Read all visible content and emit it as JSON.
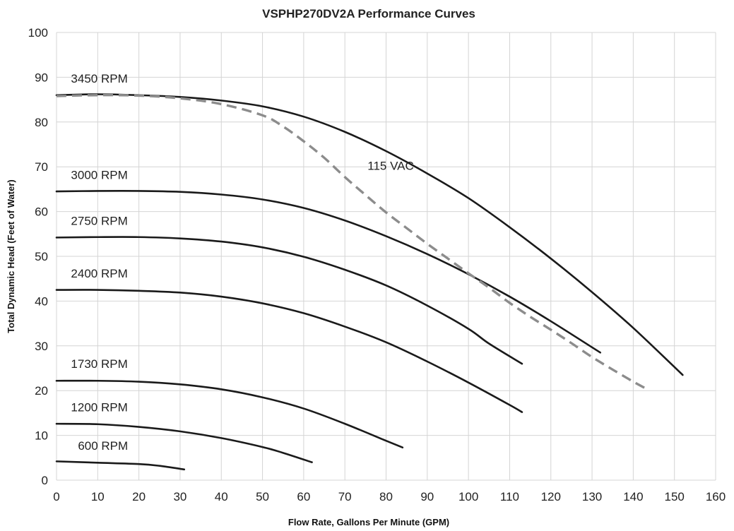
{
  "chart_data": {
    "type": "line",
    "title": "VSPHP270DV2A Performance Curves",
    "xlabel": "Flow Rate, Gallons Per Minute  (GPM)",
    "ylabel": "Total Dynamic Head (Feet of Water)",
    "xlim": [
      0,
      160
    ],
    "ylim": [
      0,
      100
    ],
    "x_ticks": [
      0,
      10,
      20,
      30,
      40,
      50,
      60,
      70,
      80,
      90,
      100,
      110,
      120,
      130,
      140,
      150,
      160
    ],
    "y_ticks": [
      0,
      10,
      20,
      30,
      40,
      50,
      60,
      70,
      80,
      90,
      100
    ],
    "grid": true,
    "series": [
      {
        "name": "3450 RPM",
        "style": "solid",
        "color": "#1a1a1a",
        "points": [
          [
            0,
            86
          ],
          [
            10,
            86.2
          ],
          [
            20,
            86
          ],
          [
            30,
            85.6
          ],
          [
            40,
            84.8
          ],
          [
            50,
            83.5
          ],
          [
            60,
            81.2
          ],
          [
            70,
            77.8
          ],
          [
            80,
            73.5
          ],
          [
            90,
            68.5
          ],
          [
            100,
            63
          ],
          [
            110,
            56.5
          ],
          [
            120,
            49.5
          ],
          [
            130,
            42
          ],
          [
            140,
            34
          ],
          [
            152,
            23.5
          ]
        ]
      },
      {
        "name": "3000 RPM",
        "style": "solid",
        "color": "#1a1a1a",
        "points": [
          [
            0,
            64.5
          ],
          [
            10,
            64.6
          ],
          [
            20,
            64.6
          ],
          [
            30,
            64.4
          ],
          [
            40,
            63.8
          ],
          [
            50,
            62.7
          ],
          [
            60,
            60.8
          ],
          [
            70,
            58
          ],
          [
            80,
            54.5
          ],
          [
            90,
            50.5
          ],
          [
            100,
            46
          ],
          [
            110,
            41
          ],
          [
            120,
            35.5
          ],
          [
            132,
            28.5
          ]
        ]
      },
      {
        "name": "2750 RPM",
        "style": "solid",
        "color": "#1a1a1a",
        "points": [
          [
            0,
            54.2
          ],
          [
            10,
            54.3
          ],
          [
            20,
            54.3
          ],
          [
            30,
            54
          ],
          [
            40,
            53.3
          ],
          [
            50,
            52
          ],
          [
            60,
            49.9
          ],
          [
            70,
            47
          ],
          [
            80,
            43.5
          ],
          [
            90,
            39
          ],
          [
            100,
            33.8
          ],
          [
            105,
            30.5
          ],
          [
            113,
            26
          ]
        ]
      },
      {
        "name": "2400 RPM",
        "style": "solid",
        "color": "#1a1a1a",
        "points": [
          [
            0,
            42.5
          ],
          [
            10,
            42.5
          ],
          [
            20,
            42.3
          ],
          [
            30,
            41.9
          ],
          [
            40,
            41
          ],
          [
            50,
            39.5
          ],
          [
            60,
            37.3
          ],
          [
            70,
            34.3
          ],
          [
            80,
            30.8
          ],
          [
            90,
            26.5
          ],
          [
            100,
            21.8
          ],
          [
            110,
            16.8
          ],
          [
            113,
            15.2
          ]
        ]
      },
      {
        "name": "1730 RPM",
        "style": "solid",
        "color": "#1a1a1a",
        "points": [
          [
            0,
            22.2
          ],
          [
            10,
            22.2
          ],
          [
            20,
            22
          ],
          [
            30,
            21.4
          ],
          [
            40,
            20.3
          ],
          [
            50,
            18.5
          ],
          [
            60,
            16
          ],
          [
            70,
            12.6
          ],
          [
            80,
            8.8
          ],
          [
            84,
            7.3
          ]
        ]
      },
      {
        "name": "1200 RPM",
        "style": "solid",
        "color": "#1a1a1a",
        "points": [
          [
            0,
            12.6
          ],
          [
            10,
            12.5
          ],
          [
            20,
            11.9
          ],
          [
            30,
            10.9
          ],
          [
            40,
            9.4
          ],
          [
            50,
            7.4
          ],
          [
            55,
            6.1
          ],
          [
            62,
            4
          ]
        ]
      },
      {
        "name": "600 RPM",
        "style": "solid",
        "color": "#1a1a1a",
        "points": [
          [
            0,
            4.2
          ],
          [
            10,
            3.9
          ],
          [
            20,
            3.6
          ],
          [
            25,
            3.2
          ],
          [
            31,
            2.4
          ]
        ]
      },
      {
        "name": "115 VAC",
        "style": "dashed",
        "color": "#8c8c8c",
        "points": [
          [
            0,
            85.8
          ],
          [
            10,
            86
          ],
          [
            20,
            85.9
          ],
          [
            30,
            85.3
          ],
          [
            40,
            84
          ],
          [
            50,
            81.5
          ],
          [
            55,
            79
          ],
          [
            60,
            75.7
          ],
          [
            65,
            72
          ],
          [
            70,
            67.7
          ],
          [
            75,
            63.7
          ],
          [
            80,
            59.8
          ],
          [
            85,
            56.3
          ],
          [
            90,
            52.8
          ],
          [
            95,
            49.5
          ],
          [
            100,
            46.2
          ],
          [
            105,
            43
          ],
          [
            110,
            39.6
          ],
          [
            115,
            36.5
          ],
          [
            120,
            33.6
          ],
          [
            125,
            30.6
          ],
          [
            130,
            27.5
          ],
          [
            135,
            24.7
          ],
          [
            140,
            22
          ],
          [
            143,
            20.5
          ]
        ]
      }
    ],
    "annotations": [
      {
        "text": "3450 RPM",
        "x": 3.5,
        "y": 88.8
      },
      {
        "text": "3000 RPM",
        "x": 3.5,
        "y": 67.3
      },
      {
        "text": "2750 RPM",
        "x": 3.5,
        "y": 57.0
      },
      {
        "text": "2400 RPM",
        "x": 3.5,
        "y": 45.3
      },
      {
        "text": "1730 RPM",
        "x": 3.5,
        "y": 25.1
      },
      {
        "text": "1200 RPM",
        "x": 3.5,
        "y": 15.4
      },
      {
        "text": "600 RPM",
        "x": 5.2,
        "y": 6.8
      },
      {
        "text": "115 VAC",
        "x": 75.5,
        "y": 69.3
      }
    ]
  }
}
